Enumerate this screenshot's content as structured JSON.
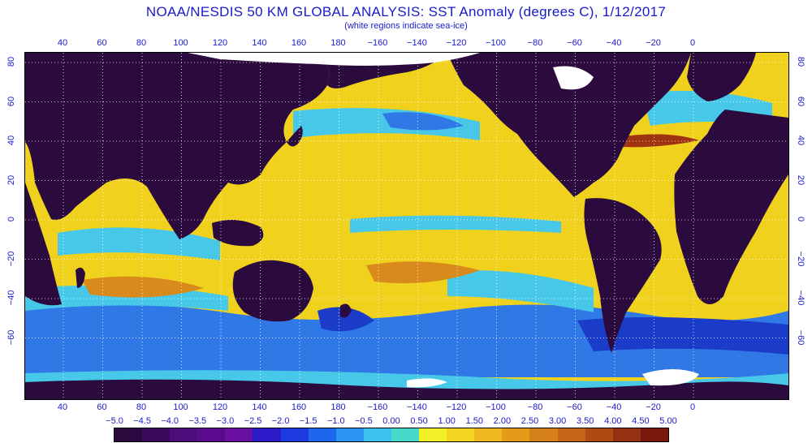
{
  "title": "NOAA/NESDIS 50 KM GLOBAL ANALYSIS: SST Anomaly (degrees C), 1/12/2017",
  "subtitle": "(white regions indicate sea-ice)",
  "longitude_ticks": [
    "40",
    "60",
    "80",
    "100",
    "120",
    "140",
    "160",
    "180",
    "−160",
    "−140",
    "−120",
    "−100",
    "−80",
    "−60",
    "−40",
    "−20",
    "0"
  ],
  "latitude_ticks": [
    "80",
    "60",
    "40",
    "20",
    "0",
    "−20",
    "−40",
    "−60"
  ],
  "colorbar": {
    "labels": [
      "−5.0",
      "−4.5",
      "−4.0",
      "−3.5",
      "−3.0",
      "−2.5",
      "−2.0",
      "−1.5",
      "−1.0",
      "−0.5",
      "0.00",
      "0.50",
      "1.00",
      "1.50",
      "2.00",
      "2.50",
      "3.00",
      "3.50",
      "4.00",
      "4.50",
      "5.00"
    ],
    "colors": [
      "#2a0a3e",
      "#3a0a5a",
      "#4c0c7a",
      "#5a0a8c",
      "#6a10a0",
      "#2a1ac8",
      "#1c3ae0",
      "#1e66ee",
      "#2a96f2",
      "#3cc0ee",
      "#46d8c8",
      "#f4f028",
      "#f4d420",
      "#f0b820",
      "#e49c18",
      "#d6801a",
      "#c46418",
      "#ae4a14",
      "#963012",
      "#7a180e"
    ]
  },
  "map_colors": {
    "land": "#2b0a3d",
    "ice": "#ffffff",
    "ocean_warm": "#f0d21e",
    "ocean_mild": "#f5e632",
    "ocean_cool": "#48c8e8",
    "ocean_cold": "#2f78e6",
    "ocean_very_cold": "#1a3cc8",
    "ocean_hot": "#d88a1c",
    "ocean_very_hot": "#a03410",
    "grid": "#ffffff"
  }
}
